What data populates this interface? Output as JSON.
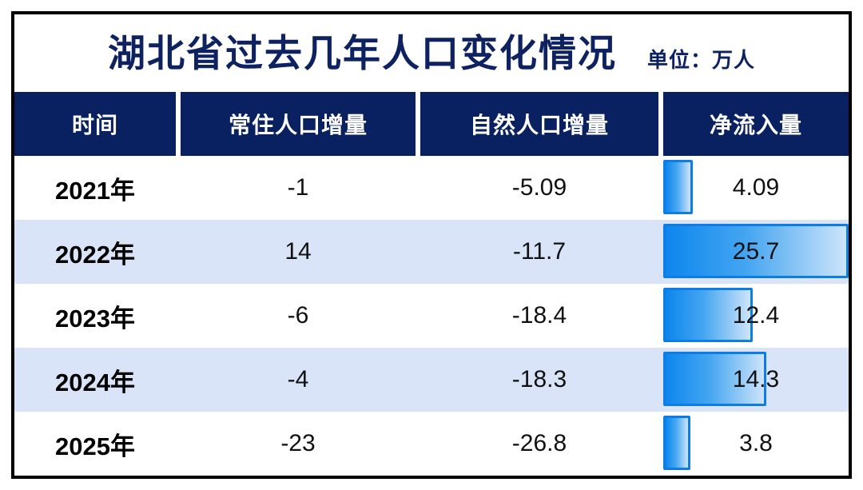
{
  "header": {
    "title": "湖北省过去几年人口变化情况",
    "unit_label": "单位：万人"
  },
  "table": {
    "columns": [
      "时间",
      "常住人口增量",
      "自然人口增量",
      "净流入量"
    ],
    "rows": [
      {
        "year": "2021年",
        "resident_increment": "-1",
        "natural_increment": "-5.09",
        "net_inflow": "4.09"
      },
      {
        "year": "2022年",
        "resident_increment": "14",
        "natural_increment": "-11.7",
        "net_inflow": "25.7"
      },
      {
        "year": "2023年",
        "resident_increment": "-6",
        "natural_increment": "-18.4",
        "net_inflow": "12.4"
      },
      {
        "year": "2024年",
        "resident_increment": "-4",
        "natural_increment": "-18.3",
        "net_inflow": "14.3"
      },
      {
        "year": "2025年",
        "resident_increment": "-23",
        "natural_increment": "-26.8",
        "net_inflow": "3.8"
      }
    ],
    "net_inflow_bar_max": 25.7
  },
  "colors": {
    "navy": "#0a2161",
    "title_text": "#0e2161",
    "row_alt": "#d9e4f8",
    "bar_border": "#0d7ce4",
    "bar_gradient_start": "#0d86ee",
    "bar_gradient_end": "#cde4fa",
    "frame_border": "#000000",
    "header_text": "#ffffff",
    "body_text": "#000000"
  },
  "chart_data": {
    "type": "table",
    "title": "湖北省过去几年人口变化情况",
    "unit": "万人",
    "columns": [
      "时间",
      "常住人口增量",
      "自然人口增量",
      "净流入量"
    ],
    "categories": [
      "2021年",
      "2022年",
      "2023年",
      "2024年",
      "2025年"
    ],
    "series": [
      {
        "name": "常住人口增量",
        "values": [
          -1,
          14,
          -6,
          -4,
          -23
        ]
      },
      {
        "name": "自然人口增量",
        "values": [
          -5.09,
          -11.7,
          -18.4,
          -18.3,
          -26.8
        ]
      },
      {
        "name": "净流入量",
        "values": [
          4.09,
          25.7,
          12.4,
          14.3,
          3.8
        ]
      }
    ],
    "bar_column": "净流入量",
    "bar_style": "horizontal bar embedded in last column, left-aligned, width proportional to value",
    "bar_max": 25.7,
    "legend_position": "none",
    "grid": false
  }
}
